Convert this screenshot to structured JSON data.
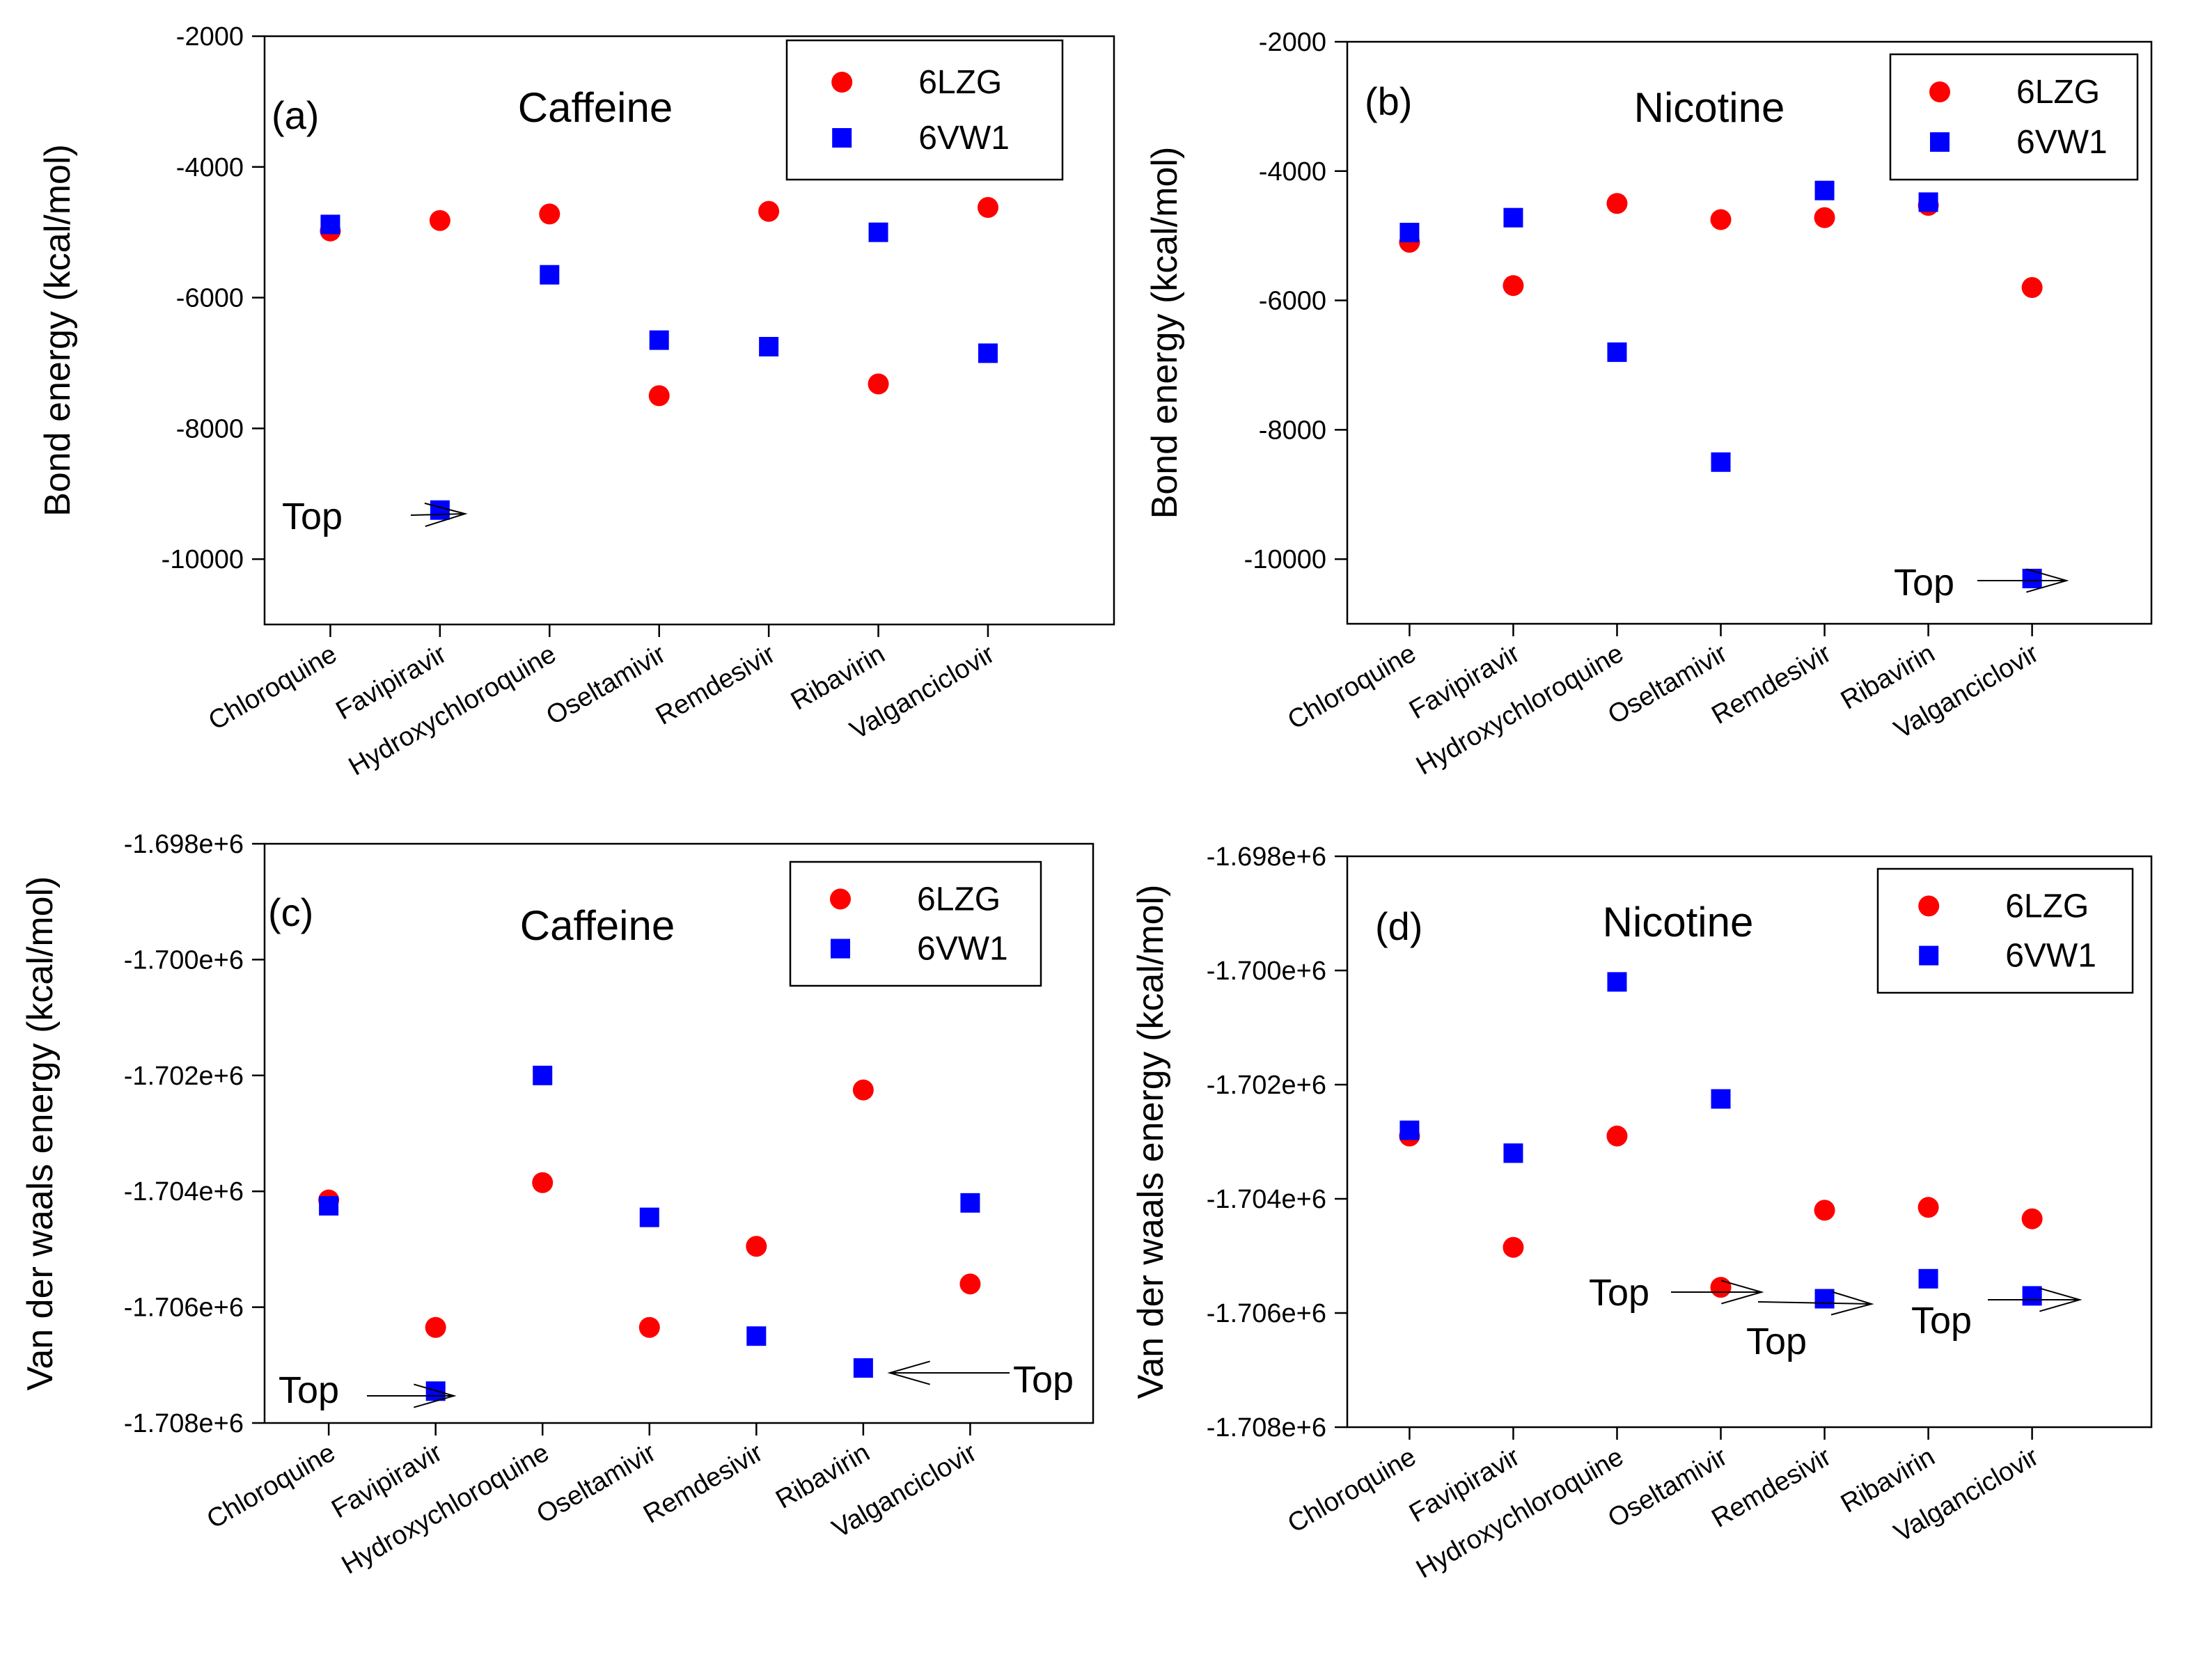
{
  "chart_data": [
    {
      "type": "scatter",
      "panel_label": "(a)",
      "title": "Caffeine",
      "xlabel": "",
      "ylabel": "Bond energy (kcal/mol)",
      "categories": [
        "Chloroquine",
        "Favipiravir",
        "Hydroxychloroquine",
        "Oseltamivir",
        "Remdesivir",
        "Ribavirin",
        "Valganciclovir"
      ],
      "ylim": [
        -11000,
        -2000
      ],
      "yticks": [
        -2000,
        -4000,
        -6000,
        -8000,
        -10000
      ],
      "ytick_labels": [
        "-2000",
        "-4000",
        "-6000",
        "-8000",
        "-10000"
      ],
      "legend_position": "top-right",
      "series": [
        {
          "name": "6LZG",
          "marker": "circle",
          "color": "#ff0000",
          "values": [
            -4980,
            -4820,
            -4720,
            -7500,
            -4680,
            -7320,
            -4620
          ]
        },
        {
          "name": "6VW1",
          "marker": "square",
          "color": "#0000ff",
          "values": [
            -4880,
            -9250,
            -5650,
            -6650,
            -6750,
            -5000,
            -6850
          ]
        }
      ],
      "annotations": [
        {
          "text": "Top",
          "category": "Favipiravir",
          "series": "6VW1"
        }
      ]
    },
    {
      "type": "scatter",
      "panel_label": "(b)",
      "title": "Nicotine",
      "xlabel": "",
      "ylabel": "Bond energy (kcal/mol)",
      "categories": [
        "Chloroquine",
        "Favipiravir",
        "Hydroxychloroquine",
        "Oseltamivir",
        "Remdesivir",
        "Ribavirin",
        "Valganciclovir"
      ],
      "ylim": [
        -11000,
        -2000
      ],
      "yticks": [
        -2000,
        -4000,
        -6000,
        -8000,
        -10000
      ],
      "ytick_labels": [
        "-2000",
        "-4000",
        "-6000",
        "-8000",
        "-10000"
      ],
      "legend_position": "top-right",
      "series": [
        {
          "name": "6LZG",
          "marker": "circle",
          "color": "#ff0000",
          "values": [
            -5100,
            -5770,
            -4500,
            -4750,
            -4720,
            -4530,
            -5800
          ]
        },
        {
          "name": "6VW1",
          "marker": "square",
          "color": "#0000ff",
          "values": [
            -4950,
            -4720,
            -6800,
            -8500,
            -4300,
            -4480,
            -10300
          ]
        }
      ],
      "annotations": [
        {
          "text": "Top",
          "category": "Valganciclovir",
          "series": "6VW1"
        }
      ]
    },
    {
      "type": "scatter",
      "panel_label": "(c)",
      "title": "Caffeine",
      "xlabel": "",
      "ylabel": "Van der waals energy (kcal/mol)",
      "categories": [
        "Chloroquine",
        "Favipiravir",
        "Hydroxychloroquine",
        "Oseltamivir",
        "Remdesivir",
        "Ribavirin",
        "Valganciclovir"
      ],
      "ylim": [
        -1708000,
        -1698000
      ],
      "yticks": [
        -1698000,
        -1700000,
        -1702000,
        -1704000,
        -1706000,
        -1708000
      ],
      "ytick_labels": [
        "-1.698e+6",
        "-1.700e+6",
        "-1.702e+6",
        "-1.704e+6",
        "-1.706e+6",
        "-1.708e+6"
      ],
      "legend_position": "top-right",
      "series": [
        {
          "name": "6LZG",
          "marker": "circle",
          "color": "#ff0000",
          "values": [
            -1704150,
            -1706350,
            -1703850,
            -1706350,
            -1704950,
            -1702250,
            -1705600
          ]
        },
        {
          "name": "6VW1",
          "marker": "square",
          "color": "#0000ff",
          "values": [
            -1704250,
            -1707450,
            -1702000,
            -1704450,
            -1706500,
            -1707050,
            -1704200
          ]
        }
      ],
      "annotations": [
        {
          "text": "Top",
          "category": "Favipiravir",
          "series": "6VW1"
        },
        {
          "text": "Top",
          "category": "Ribavirin",
          "series": "6VW1"
        }
      ]
    },
    {
      "type": "scatter",
      "panel_label": "(d)",
      "title": "Nicotine",
      "xlabel": "",
      "ylabel": "Van der waals energy (kcal/mol)",
      "categories": [
        "Chloroquine",
        "Favipiravir",
        "Hydroxychloroquine",
        "Oseltamivir",
        "Remdesivir",
        "Ribavirin",
        "Valganciclovir"
      ],
      "ylim": [
        -1708000,
        -1698000
      ],
      "yticks": [
        -1698000,
        -1700000,
        -1702000,
        -1704000,
        -1706000,
        -1708000
      ],
      "ytick_labels": [
        "-1.698e+6",
        "-1.700e+6",
        "-1.702e+6",
        "-1.704e+6",
        "-1.706e+6",
        "-1.708e+6"
      ],
      "legend_position": "top-right",
      "series": [
        {
          "name": "6LZG",
          "marker": "circle",
          "color": "#ff0000",
          "values": [
            -1702900,
            -1704850,
            -1702900,
            -1705550,
            -1704200,
            -1704150,
            -1704350
          ]
        },
        {
          "name": "6VW1",
          "marker": "square",
          "color": "#0000ff",
          "values": [
            -1702800,
            -1703200,
            -1700200,
            -1702250,
            -1705750,
            -1705400,
            -1705700
          ]
        }
      ],
      "annotations": [
        {
          "text": "Top",
          "category": "Oseltamivir",
          "series": "6LZG"
        },
        {
          "text": "Top",
          "category": "Remdesivir",
          "series": "6VW1"
        },
        {
          "text": "Top",
          "category": "Valganciclovir",
          "series": "6VW1"
        }
      ]
    }
  ]
}
